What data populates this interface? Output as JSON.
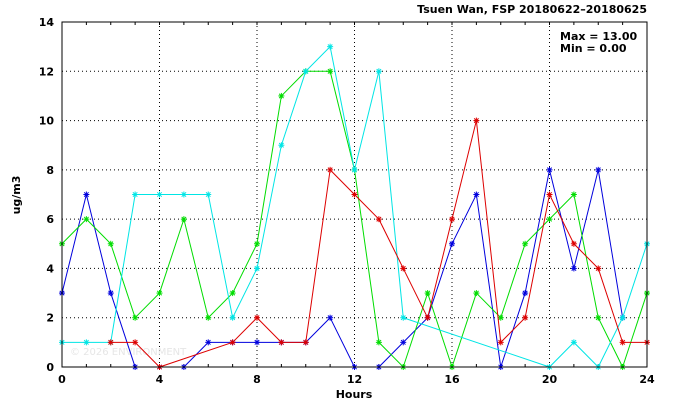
{
  "chart_data": {
    "type": "line",
    "title": "Tsuen Wan, FSP 20180622–20180625",
    "xlabel": "Hours",
    "ylabel": "ug/m3",
    "xlim": [
      0,
      24
    ],
    "ylim": [
      0,
      14
    ],
    "xticks": [
      0,
      4,
      8,
      12,
      16,
      20,
      24
    ],
    "yticks": [
      0,
      2,
      4,
      6,
      8,
      10,
      12,
      14
    ],
    "grid": true,
    "stats": {
      "max": "Max = 13.00",
      "min": "Min =  0.00"
    },
    "watermark": "© 2026 ENVIRONMENT",
    "series": [
      {
        "color": "#0000dd",
        "x": [
          0,
          1,
          2,
          3,
          4,
          5,
          6,
          7,
          8,
          9,
          10,
          11,
          12,
          13,
          14,
          15,
          16,
          17,
          18,
          19,
          20,
          21,
          22,
          23
        ],
        "y": [
          3,
          7,
          3,
          0,
          0,
          0,
          1,
          1,
          1,
          1,
          1,
          2,
          0,
          0,
          1,
          2,
          5,
          7,
          0,
          3,
          8,
          4,
          8,
          2
        ]
      },
      {
        "color": "#00dd00",
        "x": [
          0,
          1,
          2,
          3,
          4,
          5,
          6,
          7,
          8,
          9,
          10,
          11,
          12,
          13,
          14,
          15,
          16,
          17,
          18,
          19,
          20,
          21,
          22,
          23,
          24
        ],
        "y": [
          5,
          6,
          5,
          2,
          3,
          6,
          2,
          3,
          5,
          11,
          12,
          12,
          8,
          1,
          0,
          3,
          0,
          3,
          2,
          5,
          6,
          7,
          2,
          0,
          3
        ]
      },
      {
        "color": "#00e5e5",
        "x": [
          0,
          1,
          2,
          3,
          4,
          5,
          6,
          7,
          8,
          9,
          10,
          11,
          12,
          13,
          14,
          20,
          21,
          22,
          23,
          24
        ],
        "y": [
          1,
          1,
          1,
          7,
          7,
          7,
          7,
          2,
          4,
          9,
          12,
          13,
          8,
          12,
          2,
          0,
          1,
          0,
          2,
          5
        ]
      },
      {
        "color": "#dd0000",
        "x": [
          2,
          3,
          4,
          7,
          8,
          9,
          10,
          11,
          12,
          13,
          14,
          15,
          16,
          17,
          18,
          19,
          20,
          21,
          22,
          23,
          24
        ],
        "y": [
          1,
          1,
          0,
          1,
          2,
          1,
          1,
          8,
          7,
          6,
          4,
          2,
          6,
          10,
          1,
          2,
          7,
          5,
          4,
          1,
          1
        ]
      }
    ]
  }
}
